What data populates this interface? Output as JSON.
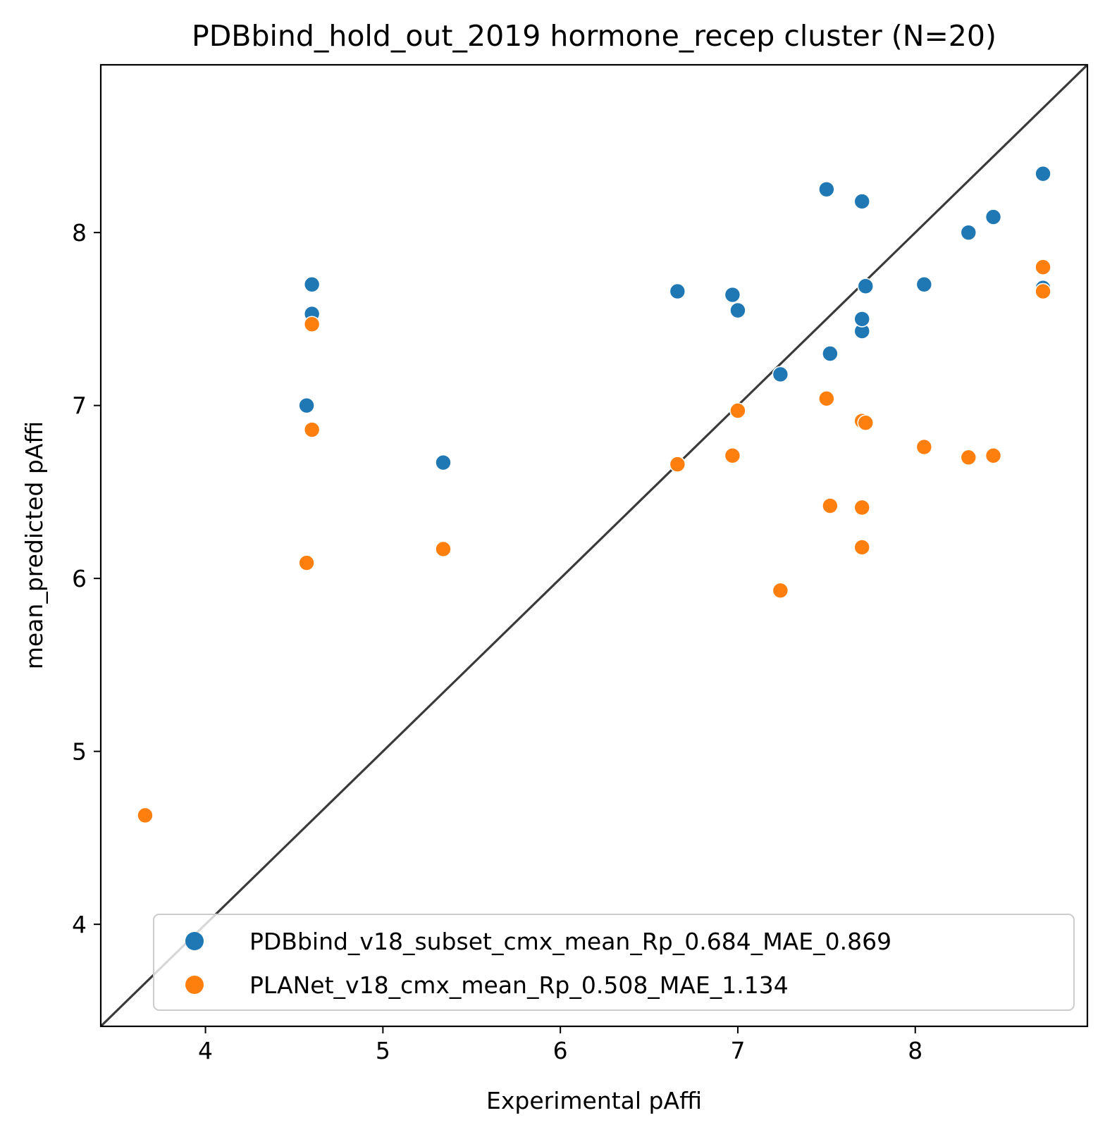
{
  "chart_data": {
    "type": "scatter",
    "title": "PDBbind_hold_out_2019 hormone_recep cluster (N=20)",
    "xlabel": "Experimental pAffi",
    "ylabel": "mean_predicted pAffi",
    "xlim": [
      3.41,
      8.97
    ],
    "ylim": [
      3.41,
      8.97
    ],
    "xticks": [
      4,
      5,
      6,
      7,
      8
    ],
    "yticks": [
      4,
      5,
      6,
      7,
      8
    ],
    "grid": false,
    "legend_position": "lower-right",
    "identity_line": true,
    "identity_line_color": "#3a3a3a",
    "series": [
      {
        "name": "PDBbind_v18_subset_cmx_mean_Rp_0.684_MAE_0.869",
        "color": "#1f77b4",
        "x": [
          4.57,
          4.6,
          4.6,
          5.34,
          6.66,
          6.97,
          7.0,
          7.24,
          7.5,
          7.52,
          7.7,
          7.7,
          7.7,
          7.72,
          8.05,
          8.3,
          8.44,
          8.72,
          8.72,
          8.72
        ],
        "y": [
          7.0,
          7.7,
          7.53,
          6.67,
          7.66,
          7.64,
          7.55,
          7.18,
          8.25,
          7.3,
          8.18,
          7.43,
          7.5,
          7.69,
          7.7,
          8.0,
          8.09,
          8.34,
          7.68,
          7.66
        ]
      },
      {
        "name": "PLANet_v18_cmx_mean_Rp_0.508_MAE_1.134",
        "color": "#ff7f0e",
        "x": [
          3.66,
          4.57,
          4.6,
          4.6,
          5.34,
          6.66,
          6.97,
          7.0,
          7.24,
          7.5,
          7.52,
          7.7,
          7.7,
          7.7,
          7.72,
          8.05,
          8.3,
          8.44,
          8.72,
          8.72
        ],
        "y": [
          4.63,
          6.09,
          6.86,
          7.47,
          6.17,
          6.66,
          6.71,
          6.97,
          5.93,
          7.04,
          6.42,
          6.41,
          6.18,
          6.91,
          6.9,
          6.76,
          6.7,
          6.71,
          7.8,
          7.66
        ]
      }
    ]
  }
}
